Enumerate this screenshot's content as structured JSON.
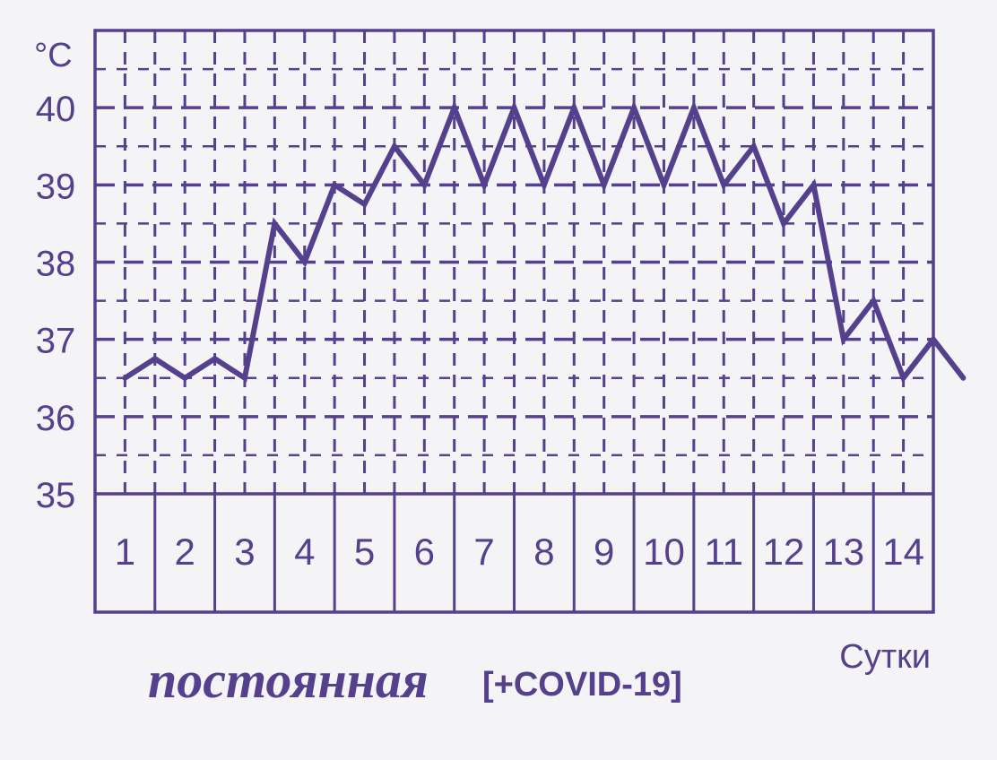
{
  "colors": {
    "ink": "#54408c",
    "background": "#f4f3f6"
  },
  "caption": {
    "title": "постоянная",
    "tag": "[+COVID-19]"
  },
  "chart_data": {
    "type": "line",
    "unit_label": "°C",
    "xlabel": "Сутки",
    "ylim": [
      35,
      41
    ],
    "yticks": [
      35,
      36,
      37,
      38,
      39,
      40
    ],
    "ytick_labels": [
      "35",
      "36",
      "37",
      "38",
      "39",
      "40"
    ],
    "days": [
      "1",
      "2",
      "3",
      "4",
      "5",
      "6",
      "7",
      "8",
      "9",
      "10",
      "11",
      "12",
      "13",
      "14"
    ],
    "grid": true,
    "grid_style": "dashed",
    "series": [
      {
        "x": [
          0.5,
          1.0,
          1.5,
          2.0,
          2.5,
          3.0,
          3.5,
          4.0,
          4.5,
          5.0,
          5.5,
          6.0,
          6.5,
          7.0,
          7.5,
          8.0,
          8.5,
          9.0,
          9.5,
          10.0,
          10.5,
          11.0,
          11.5,
          12.0,
          12.5,
          13.0,
          13.5,
          14.0,
          14.5
        ],
        "values": [
          36.5,
          36.75,
          36.5,
          36.75,
          36.5,
          38.5,
          38.0,
          39.0,
          38.75,
          39.5,
          39.0,
          40.0,
          39.0,
          40.0,
          39.0,
          40.0,
          39.0,
          40.0,
          39.0,
          40.0,
          39.0,
          39.5,
          38.5,
          39.0,
          37.0,
          37.5,
          36.5,
          37.0,
          36.5
        ]
      }
    ]
  }
}
